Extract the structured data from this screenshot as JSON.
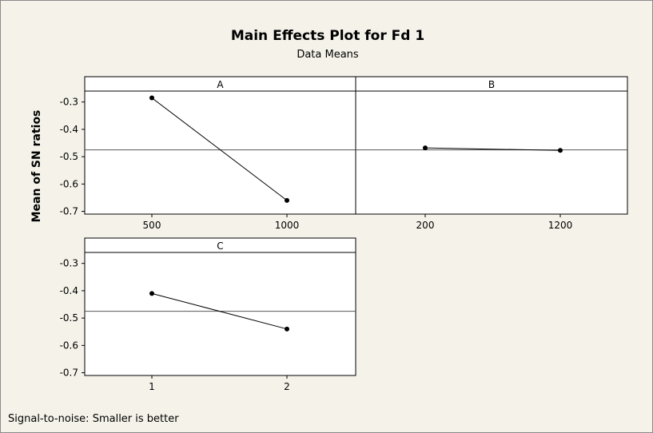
{
  "chart_data": {
    "type": "line",
    "title": "Main Effects Plot for Fd 1",
    "subtitle": "Data Means",
    "ylabel": "Mean of SN ratios",
    "ylim": [
      -0.71,
      -0.26
    ],
    "yticks": [
      "-0.3",
      "-0.4",
      "-0.5",
      "-0.6",
      "-0.7"
    ],
    "grand_mean": -0.475,
    "footnote": "Signal-to-noise: Smaller is better",
    "panels": [
      {
        "name": "A",
        "x": [
          "500",
          "1000"
        ],
        "values": [
          -0.285,
          -0.66
        ]
      },
      {
        "name": "B",
        "x": [
          "200",
          "1200"
        ],
        "values": [
          -0.468,
          -0.477
        ]
      },
      {
        "name": "C",
        "x": [
          "1",
          "2"
        ],
        "values": [
          -0.41,
          -0.54
        ]
      }
    ]
  },
  "colors": {
    "background": "#f4f2e9",
    "plot_area": "#ffffff",
    "line": "#000000"
  }
}
